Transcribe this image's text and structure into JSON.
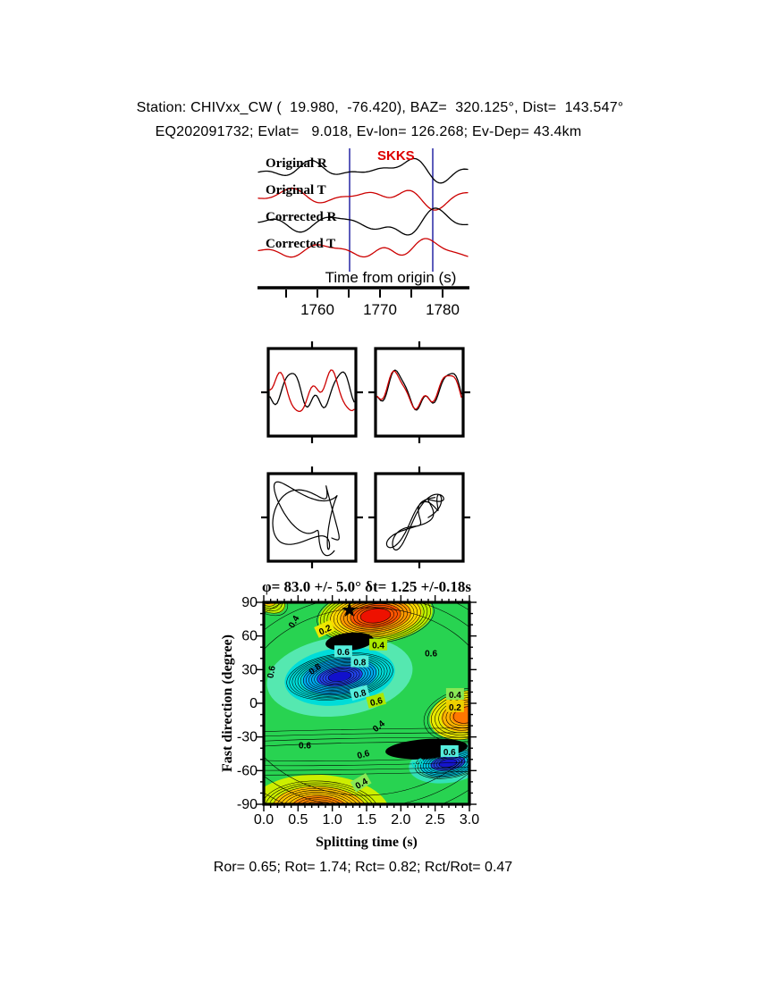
{
  "page": {
    "background": "#FFFFFF"
  },
  "header": {
    "line1": "Station: CHIVxx_CW (  19.980,  -76.420), BAZ=  320.125°, Dist=  143.547°",
    "line2": "EQ202091732; Evlat=   9.018, Ev-lon= 126.268; Ev-Dep= 43.4km"
  },
  "colors": {
    "trace_r": "#000000",
    "trace_t": "#CC0000",
    "window_marker": "#3333AA",
    "phase_label_color": "#DD0000",
    "map_green": "#28D351",
    "map_min_red": "#EE1100",
    "map_blue": "#1111CC",
    "label_cyan": "#55EEDD",
    "label_yellow": "#EEE800",
    "label_yellowgreen": "#AAE800",
    "label_green": "#88E855"
  },
  "waveform_panel": {
    "trace_labels": [
      "Original R",
      "Original T",
      "Corrected R",
      "Corrected T"
    ],
    "phase_label": "SKKS",
    "axis_label": "Time from origin (s)",
    "tick_labels": [
      "1760",
      "1770",
      "1780"
    ]
  },
  "contour_panel": {
    "title": "φ= 83.0 +/- 5.0° δt= 1.25 +/-0.18s",
    "xlabel": "Splitting time (s)",
    "ylabel": "Fast direction (degree)",
    "xtick_labels": [
      "0.0",
      "0.5",
      "1.0",
      "1.5",
      "2.0",
      "2.5",
      "3.0"
    ],
    "ytick_labels": [
      "90",
      "60",
      "30",
      "0",
      "-30",
      "-60",
      "-90"
    ]
  },
  "results_line": "Ror= 0.65; Rot= 1.74; Rct= 0.82; Rct/Rot= 0.47",
  "results": {
    "Ror": 0.65,
    "Rot": 1.74,
    "Rct": 0.82,
    "Rct_over_Rot": 0.47
  },
  "chart_data": [
    {
      "type": "line",
      "name": "waveforms-time-series",
      "xlabel": "Time from origin (s)",
      "xticks": [
        1760,
        1770,
        1780
      ],
      "xrange": [
        1751,
        1784
      ],
      "series": [
        {
          "name": "Original R",
          "color": "#000000"
        },
        {
          "name": "Original T",
          "color": "#CC0000"
        },
        {
          "name": "Corrected R",
          "color": "#000000"
        },
        {
          "name": "Corrected T",
          "color": "#CC0000"
        }
      ],
      "phase_marker": "SKKS",
      "analysis_window_s": [
        1765,
        1778.5
      ]
    },
    {
      "type": "line",
      "name": "fast-slow-original",
      "description": "fast (black) vs slow (red) component, before correction, misaligned"
    },
    {
      "type": "line",
      "name": "fast-slow-corrected",
      "description": "fast (black) vs slow (red) component, after correction, aligned"
    },
    {
      "type": "line",
      "name": "particle-motion-original",
      "description": "elliptical particle motion before correction"
    },
    {
      "type": "line",
      "name": "particle-motion-corrected",
      "description": "linearized diagonal particle motion after correction"
    },
    {
      "type": "heatmap",
      "name": "splitting-error-surface",
      "title": "φ= 83.0 +/- 5.0° δt= 1.25 +/-0.18s",
      "xlabel": "Splitting time (s)",
      "ylabel": "Fast direction (degree)",
      "xlim": [
        0,
        3
      ],
      "ylim": [
        -90,
        90
      ],
      "xticks": [
        0.0,
        0.5,
        1.0,
        1.5,
        2.0,
        2.5,
        3.0
      ],
      "yticks": [
        90,
        60,
        30,
        0,
        -30,
        -60,
        -90
      ],
      "x_minor_step": 0.1,
      "y_minor_step": 10,
      "grid": false,
      "best_fit": {
        "phi_deg": 83.0,
        "phi_err_deg": 5.0,
        "dt_s": 1.25,
        "dt_err_s": 0.18
      },
      "star_at": {
        "x_s": 1.25,
        "y_deg": 83
      },
      "contour_levels": [
        0.2,
        0.4,
        0.6,
        0.8
      ],
      "contour_labels": [
        {
          "text": "0.4",
          "x": 0.43,
          "y": 73,
          "rot": -60,
          "bg": null,
          "fg": "#000000"
        },
        {
          "text": "0.2",
          "x": 0.89,
          "y": 66,
          "rot": -25,
          "bg": "#EEE800",
          "fg": "#000000"
        },
        {
          "text": "0.4",
          "x": 1.67,
          "y": 52,
          "rot": 0,
          "bg": "#AAE800",
          "fg": "#000000"
        },
        {
          "text": "0.6",
          "x": 1.16,
          "y": 46,
          "rot": 0,
          "bg": "#55EEDD",
          "fg": "#000000"
        },
        {
          "text": "0.6",
          "x": 2.44,
          "y": 45,
          "rot": 0,
          "bg": null,
          "fg": "#000000"
        },
        {
          "text": "0.8",
          "x": 1.4,
          "y": 37,
          "rot": 0,
          "bg": "#55EEDD",
          "fg": "#000000"
        },
        {
          "text": "0.8",
          "x": 0.74,
          "y": 31,
          "rot": -35,
          "bg": null,
          "fg": "#000000"
        },
        {
          "text": "0.6",
          "x": 0.1,
          "y": 28,
          "rot": -80,
          "bg": null,
          "fg": "#000000"
        },
        {
          "text": "0.8",
          "x": 1.4,
          "y": 9,
          "rot": -15,
          "bg": "#55EEDD",
          "fg": "#000000"
        },
        {
          "text": "0.6",
          "x": 1.64,
          "y": 2,
          "rot": -15,
          "bg": "#AAE800",
          "fg": "#000000"
        },
        {
          "text": "0.4",
          "x": 2.79,
          "y": 8,
          "rot": 0,
          "bg": "#88E855",
          "fg": "#000000"
        },
        {
          "text": "0.2",
          "x": 2.79,
          "y": -3,
          "rot": 0,
          "bg": "#EED000",
          "fg": "#000000"
        },
        {
          "text": "0.4",
          "x": 1.67,
          "y": -20,
          "rot": -40,
          "bg": null,
          "fg": "#000000"
        },
        {
          "text": "0.6",
          "x": 0.6,
          "y": -37,
          "rot": 0,
          "bg": null,
          "fg": "#000000"
        },
        {
          "text": "0.6",
          "x": 1.45,
          "y": -45,
          "rot": -15,
          "bg": null,
          "fg": "#000000"
        },
        {
          "text": "0.6",
          "x": 2.71,
          "y": -43,
          "rot": 0,
          "bg": "#55EEDD",
          "fg": "#000000"
        },
        {
          "text": "0.8",
          "x": 2.24,
          "y": -53,
          "rot": -30,
          "bg": null,
          "fg": "#00DDD0"
        },
        {
          "text": "0.4",
          "x": 1.42,
          "y": -71,
          "rot": -30,
          "bg": "#88E855",
          "fg": "#000000"
        }
      ]
    }
  ]
}
